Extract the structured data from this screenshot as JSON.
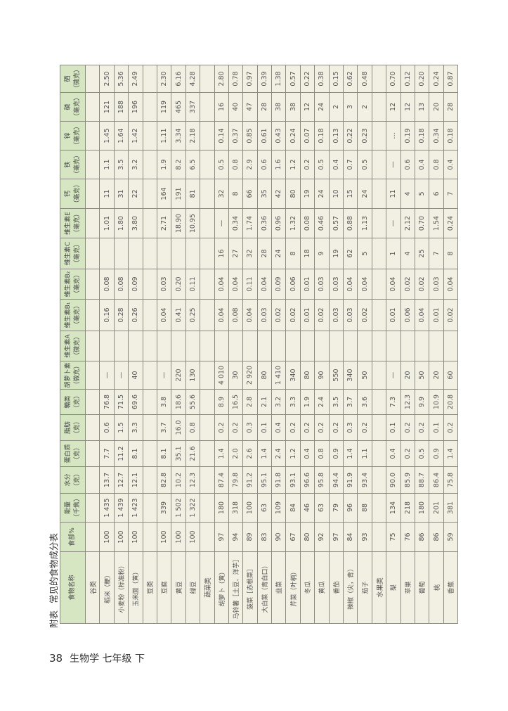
{
  "caption": {
    "label": "附表",
    "title": "常见的食物成分表"
  },
  "footer": {
    "page_number": "38",
    "book": "生物学 七年级 下"
  },
  "colors": {
    "header_bg": "#d6e6c2",
    "cell_bg": "#f2f0e2"
  },
  "table": {
    "headers": [
      {
        "name": "食物名称",
        "unit": ""
      },
      {
        "name": "食部%",
        "unit": ""
      },
      {
        "name": "能量",
        "unit": "（千焦）"
      },
      {
        "name": "水分",
        "unit": "（克）"
      },
      {
        "name": "蛋白质",
        "unit": "（克）"
      },
      {
        "name": "脂肪",
        "unit": "（克）"
      },
      {
        "name": "糖类",
        "unit": "（克）"
      },
      {
        "name": "胡萝卜素",
        "unit": "（微克）"
      },
      {
        "name": "维生素A",
        "unit": "（微克）"
      },
      {
        "name": "维生素B₁",
        "unit": "（毫克）"
      },
      {
        "name": "维生素B₂",
        "unit": "（毫克）"
      },
      {
        "name": "维生素C",
        "unit": "（毫克）"
      },
      {
        "name": "维生素E",
        "unit": "（毫克）"
      },
      {
        "name": "钙",
        "unit": "（毫克）"
      },
      {
        "name": "铁",
        "unit": "（毫克）"
      },
      {
        "name": "锌",
        "unit": "（毫克）"
      },
      {
        "name": "磷",
        "unit": "（毫克）"
      },
      {
        "name": "硒",
        "unit": "（微克）"
      }
    ],
    "rows": [
      {
        "category": "谷类"
      },
      {
        "cells": [
          "稻米（粳）",
          "100",
          "1 435",
          "13.7",
          "7.7",
          "0.6",
          "76.8",
          "—",
          "",
          "0.16",
          "0.08",
          "",
          "1.01",
          "11",
          "1.1",
          "1.45",
          "121",
          "2.50"
        ]
      },
      {
        "cells": [
          "小麦粉（标准粉）",
          "100",
          "1 439",
          "12.7",
          "11.2",
          "1.5",
          "71.5",
          "—",
          "",
          "0.28",
          "0.08",
          "",
          "1.80",
          "31",
          "3.5",
          "1.64",
          "188",
          "5.36"
        ]
      },
      {
        "cells": [
          "玉米面（黄）",
          "100",
          "1 423",
          "12.1",
          "8.1",
          "3.3",
          "69.6",
          "40",
          "",
          "0.26",
          "0.09",
          "",
          "3.80",
          "22",
          "3.2",
          "1.42",
          "196",
          "2.49"
        ]
      },
      {
        "category": "豆类"
      },
      {
        "cells": [
          "豆腐",
          "100",
          "339",
          "82.8",
          "8.1",
          "3.7",
          "3.8",
          "—",
          "",
          "0.04",
          "0.03",
          "",
          "2.71",
          "164",
          "1.9",
          "1.11",
          "119",
          "2.30"
        ]
      },
      {
        "cells": [
          "黄豆",
          "100",
          "1 502",
          "10.2",
          "35.1",
          "16.0",
          "18.6",
          "220",
          "",
          "0.41",
          "0.20",
          "",
          "18.90",
          "191",
          "8.2",
          "3.34",
          "465",
          "6.16"
        ]
      },
      {
        "cells": [
          "绿豆",
          "100",
          "1 322",
          "12.3",
          "21.6",
          "0.8",
          "55.6",
          "130",
          "",
          "0.25",
          "0.11",
          "",
          "10.95",
          "81",
          "6.5",
          "2.18",
          "337",
          "4.28"
        ]
      },
      {
        "category": "蔬菜类"
      },
      {
        "cells": [
          "胡萝卜（黄）",
          "97",
          "180",
          "87.4",
          "1.4",
          "0.2",
          "8.9",
          "4 010",
          "",
          "0.04",
          "0.04",
          "16",
          "—",
          "32",
          "0.5",
          "0.14",
          "16",
          "2.80"
        ]
      },
      {
        "cells": [
          "马铃薯［土豆、洋芋］",
          "94",
          "318",
          "79.8",
          "2.0",
          "0.2",
          "16.5",
          "30",
          "",
          "0.08",
          "0.04",
          "27",
          "0.34",
          "8",
          "0.8",
          "0.37",
          "40",
          "0.78"
        ]
      },
      {
        "cells": [
          "菠菜［赤根菜］",
          "89",
          "100",
          "91.2",
          "2.6",
          "0.3",
          "2.8",
          "2 920",
          "",
          "0.04",
          "0.11",
          "32",
          "1.74",
          "66",
          "2.9",
          "0.85",
          "47",
          "0.97"
        ]
      },
      {
        "cells": [
          "大白菜（青白口）",
          "83",
          "63",
          "95.1",
          "1.4",
          "0.1",
          "2.1",
          "80",
          "",
          "0.03",
          "0.04",
          "28",
          "0.36",
          "35",
          "0.6",
          "0.61",
          "28",
          "0.39"
        ]
      },
      {
        "cells": [
          "韭菜",
          "90",
          "109",
          "91.8",
          "2.4",
          "0.4",
          "3.2",
          "1 410",
          "",
          "0.02",
          "0.09",
          "24",
          "0.96",
          "42",
          "1.6",
          "0.43",
          "38",
          "1.38"
        ]
      },
      {
        "cells": [
          "芹菜（叶柄）",
          "67",
          "84",
          "93.1",
          "1.2",
          "0.2",
          "3.3",
          "340",
          "",
          "0.02",
          "0.06",
          "8",
          "1.32",
          "80",
          "1.2",
          "0.24",
          "38",
          "0.57"
        ]
      },
      {
        "cells": [
          "冬瓜",
          "80",
          "46",
          "96.6",
          "0.4",
          "0.2",
          "1.9",
          "80",
          "",
          "0.01",
          "0.01",
          "18",
          "0.08",
          "19",
          "0.2",
          "0.07",
          "12",
          "0.22"
        ]
      },
      {
        "cells": [
          "黄瓜",
          "92",
          "63",
          "95.8",
          "0.8",
          "0.2",
          "2.4",
          "90",
          "",
          "0.02",
          "0.03",
          "9",
          "0.46",
          "24",
          "0.5",
          "0.18",
          "24",
          "0.38"
        ]
      },
      {
        "cells": [
          "番茄",
          "97",
          "79",
          "94.4",
          "0.9",
          "0.2",
          "3.5",
          "550",
          "",
          "0.03",
          "0.03",
          "19",
          "0.57",
          "10",
          "0.4",
          "0.13",
          "2",
          "0.15"
        ]
      },
      {
        "cells": [
          "辣椒（尖，青）",
          "84",
          "96",
          "91.9",
          "1.4",
          "0.3",
          "3.7",
          "340",
          "",
          "0.03",
          "0.04",
          "62",
          "0.88",
          "15",
          "0.7",
          "0.22",
          "3",
          "0.62"
        ]
      },
      {
        "cells": [
          "茄子",
          "93",
          "88",
          "93.4",
          "1.1",
          "0.2",
          "3.6",
          "50",
          "",
          "0.02",
          "0.04",
          "5",
          "1.13",
          "24",
          "0.5",
          "0.23",
          "2",
          "0.48"
        ]
      },
      {
        "category": "水果类"
      },
      {
        "cells": [
          "梨",
          "75",
          "134",
          "90.0",
          "0.4",
          "0.1",
          "7.3",
          "—",
          "",
          "0.01",
          "0.04",
          "1",
          "—",
          "11",
          "—",
          "…",
          "12",
          "0.70"
        ]
      },
      {
        "cells": [
          "苹果",
          "76",
          "218",
          "85.9",
          "0.2",
          "0.2",
          "12.3",
          "20",
          "",
          "0.06",
          "0.02",
          "4",
          "2.12",
          "4",
          "0.6",
          "0.19",
          "12",
          "0.12"
        ]
      },
      {
        "cells": [
          "葡萄",
          "86",
          "180",
          "88.7",
          "0.5",
          "0.2",
          "9.9",
          "50",
          "",
          "0.04",
          "0.02",
          "25",
          "0.70",
          "5",
          "0.4",
          "0.18",
          "13",
          "0.20"
        ]
      },
      {
        "cells": [
          "桃",
          "86",
          "201",
          "86.4",
          "0.9",
          "0.1",
          "10.9",
          "20",
          "",
          "0.01",
          "0.03",
          "7",
          "1.54",
          "6",
          "0.8",
          "0.34",
          "20",
          "0.24"
        ]
      },
      {
        "cells": [
          "香蕉",
          "59",
          "381",
          "75.8",
          "1.4",
          "0.2",
          "20.8",
          "60",
          "",
          "0.02",
          "0.04",
          "8",
          "0.24",
          "7",
          "0.4",
          "0.18",
          "28",
          "0.87"
        ]
      }
    ]
  }
}
